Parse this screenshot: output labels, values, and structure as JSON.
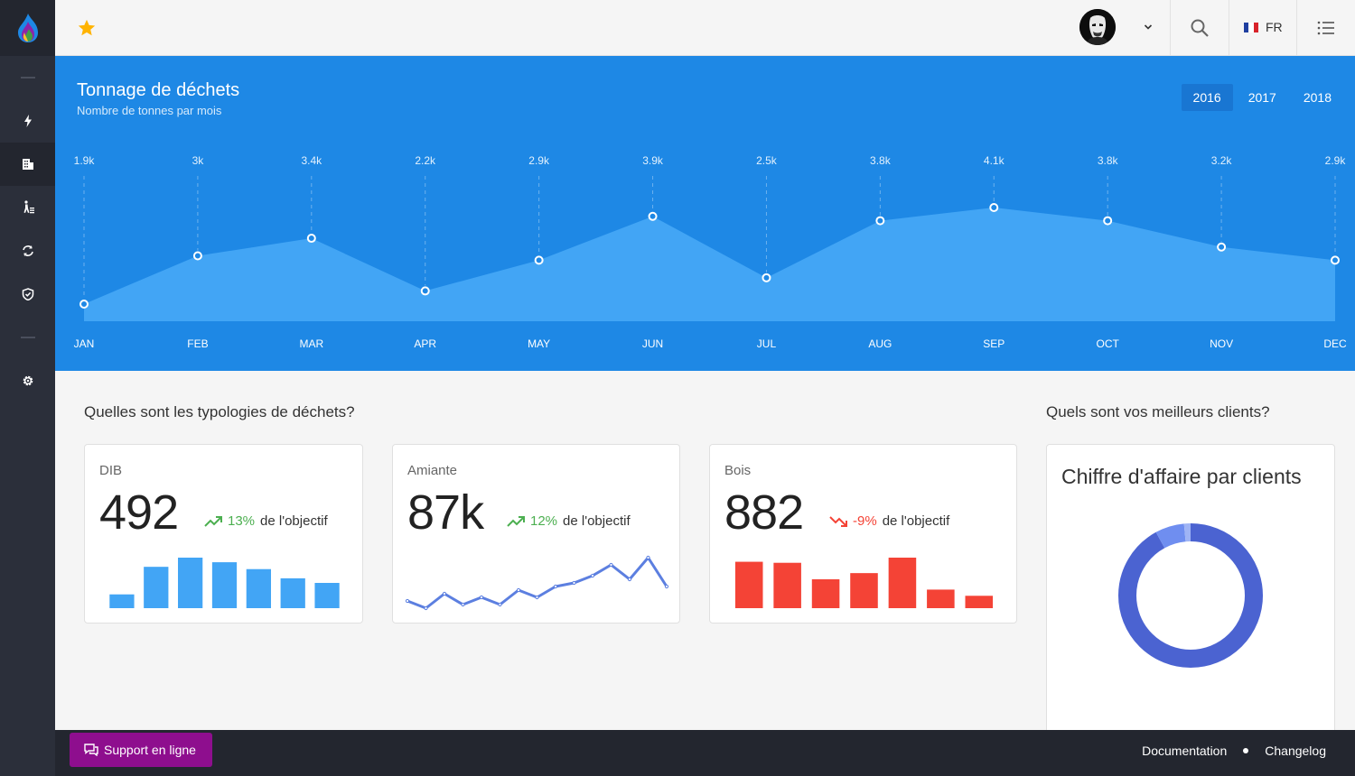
{
  "topbar": {
    "language": "FR"
  },
  "hero": {
    "title": "Tonnage de déchets",
    "subtitle": "Nombre de tonnes par mois",
    "years": [
      "2016",
      "2017",
      "2018"
    ],
    "active_year": "2016"
  },
  "chart_data": {
    "type": "area",
    "title": "Tonnage de déchets",
    "subtitle": "Nombre de tonnes par mois",
    "categories": [
      "JAN",
      "FEB",
      "MAR",
      "APR",
      "MAY",
      "JUN",
      "JUL",
      "AUG",
      "SEP",
      "OCT",
      "NOV",
      "DEC"
    ],
    "value_labels": [
      "1.9k",
      "3k",
      "3.4k",
      "2.2k",
      "2.9k",
      "3.9k",
      "2.5k",
      "3.8k",
      "4.1k",
      "3.8k",
      "3.2k",
      "2.9k"
    ],
    "values": [
      1900,
      3000,
      3400,
      2200,
      2900,
      3900,
      2500,
      3800,
      4100,
      3800,
      3200,
      2900
    ],
    "grid": false
  },
  "sections": {
    "typologies_title": "Quelles sont les typologies de déchets?",
    "clients_title": "Quels sont vos meilleurs clients?"
  },
  "cards": [
    {
      "label": "DIB",
      "value": "492",
      "pct": "13%",
      "trend_text": "de l'objectif",
      "direction": "up",
      "spark_type": "bar",
      "color": "#42a5f5",
      "spark": [
        3,
        9,
        11,
        10,
        8.5,
        6.5,
        5.5
      ]
    },
    {
      "label": "Amiante",
      "value": "87k",
      "pct": "12%",
      "trend_text": "de l'objectif",
      "direction": "up",
      "spark_type": "line",
      "color": "#5c7fe0",
      "spark": [
        2,
        0,
        4,
        1,
        3,
        1,
        5,
        3,
        6,
        7,
        9,
        12,
        8,
        14,
        6
      ]
    },
    {
      "label": "Bois",
      "value": "882",
      "pct": "-9%",
      "trend_text": "de l'objectif",
      "direction": "down",
      "spark_type": "bar",
      "color": "#f44336",
      "spark": [
        9,
        8.8,
        5.6,
        6.8,
        9.8,
        3.6,
        2.4
      ]
    }
  ],
  "clients_card": {
    "title": "Chiffre d'affaire par clients",
    "chart": {
      "type": "pie",
      "slices": [
        {
          "value": 0.92,
          "color": "#4b63d1"
        },
        {
          "value": 0.065,
          "color": "#6f8ef0"
        },
        {
          "value": 0.015,
          "color": "#9fb4f5"
        }
      ]
    }
  },
  "footer": {
    "support_label": "Support en ligne",
    "documentation": "Documentation",
    "changelog": "Changelog"
  },
  "colors": {
    "hero_bg": "#1e88e5",
    "sidebar_bg": "#2b2f3a",
    "footer_bg": "#23262f",
    "support_bg": "#8e0e8e",
    "star": "#ffb300"
  }
}
